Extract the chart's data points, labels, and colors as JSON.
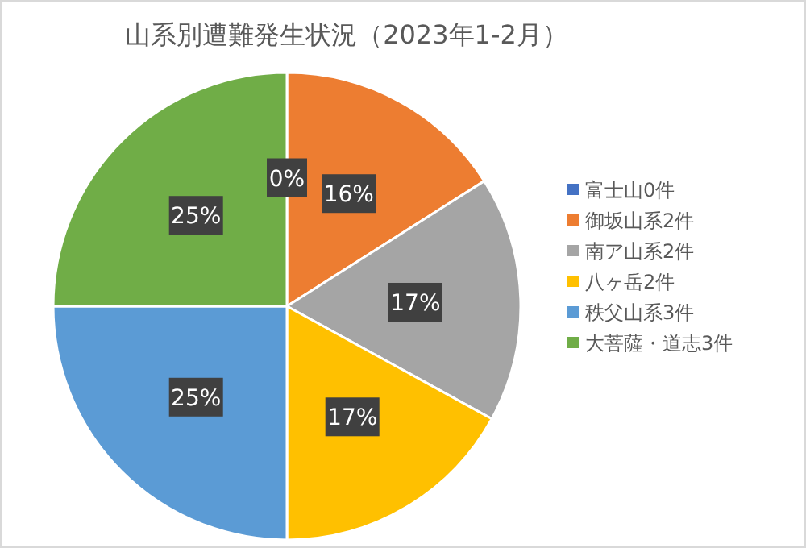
{
  "chart_data": {
    "type": "pie",
    "title": "山系別遭難発生状況（2023年1-2月）",
    "categories": [
      "富士山0件",
      "御坂山系2件",
      "南ア山系2件",
      "八ヶ岳2件",
      "秩父山系3件",
      "大菩薩・道志3件"
    ],
    "values": [
      0,
      16,
      17,
      17,
      25,
      25
    ],
    "colors": [
      "#4472c4",
      "#ed7d31",
      "#a5a5a5",
      "#ffc000",
      "#5b9bd5",
      "#70ad47"
    ],
    "value_labels": [
      "0%",
      "16%",
      "17%",
      "17%",
      "25%",
      "25%"
    ],
    "legend": "right"
  }
}
